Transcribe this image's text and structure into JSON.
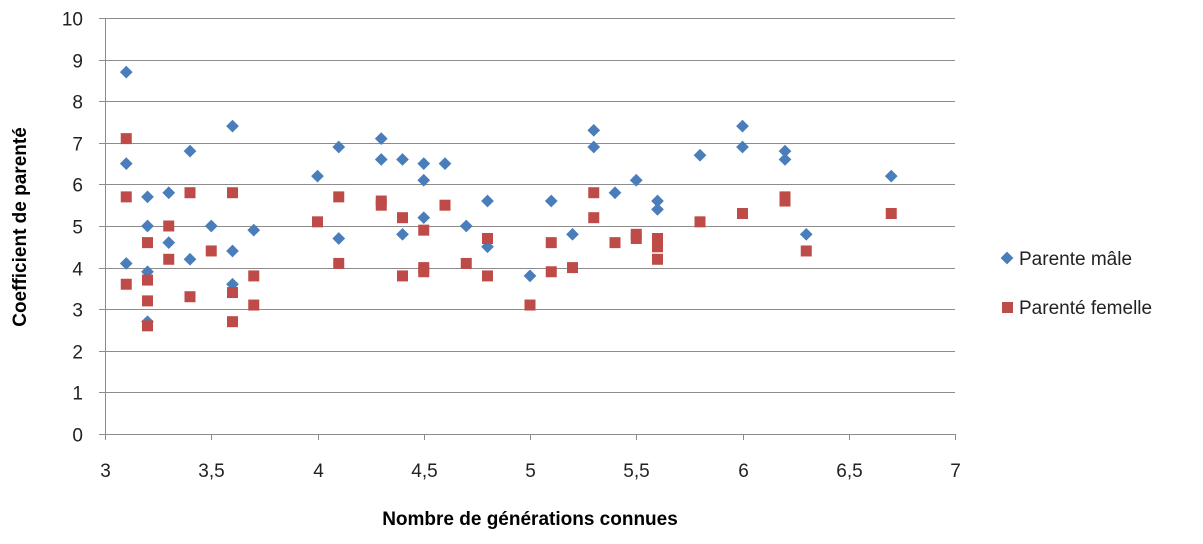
{
  "chart_data": {
    "type": "scatter",
    "title": "",
    "xlabel": "Nombre de générations connues",
    "ylabel": "Coefficient de parenté",
    "xlim": [
      3,
      7
    ],
    "ylim": [
      0,
      10
    ],
    "x_ticks": [
      "3",
      "3,5",
      "4",
      "4,5",
      "5",
      "5,5",
      "6",
      "6,5",
      "7"
    ],
    "y_ticks": [
      "0",
      "1",
      "2",
      "3",
      "4",
      "5",
      "6",
      "7",
      "8",
      "9",
      "10"
    ],
    "grid": "horizontal",
    "legend_position": "right",
    "series": [
      {
        "name": "Parente mâle",
        "marker": "diamond",
        "color": "#4a7ebb",
        "points": [
          [
            3.1,
            8.7
          ],
          [
            3.1,
            6.5
          ],
          [
            3.1,
            4.1
          ],
          [
            3.2,
            5.7
          ],
          [
            3.2,
            5.0
          ],
          [
            3.2,
            3.9
          ],
          [
            3.2,
            2.7
          ],
          [
            3.3,
            5.8
          ],
          [
            3.3,
            4.6
          ],
          [
            3.4,
            6.8
          ],
          [
            3.4,
            4.2
          ],
          [
            3.5,
            5.0
          ],
          [
            3.6,
            7.4
          ],
          [
            3.6,
            4.4
          ],
          [
            3.6,
            3.6
          ],
          [
            3.7,
            4.9
          ],
          [
            4.0,
            6.2
          ],
          [
            4.1,
            6.9
          ],
          [
            4.1,
            4.7
          ],
          [
            4.3,
            7.1
          ],
          [
            4.3,
            6.6
          ],
          [
            4.4,
            6.6
          ],
          [
            4.4,
            4.8
          ],
          [
            4.5,
            6.5
          ],
          [
            4.5,
            6.1
          ],
          [
            4.5,
            5.2
          ],
          [
            4.6,
            6.5
          ],
          [
            4.7,
            5.0
          ],
          [
            4.8,
            5.6
          ],
          [
            4.8,
            4.5
          ],
          [
            5.0,
            3.8
          ],
          [
            5.1,
            5.6
          ],
          [
            5.2,
            4.8
          ],
          [
            5.3,
            7.3
          ],
          [
            5.3,
            6.9
          ],
          [
            5.4,
            5.8
          ],
          [
            5.5,
            6.1
          ],
          [
            5.6,
            5.6
          ],
          [
            5.6,
            5.4
          ],
          [
            5.8,
            6.7
          ],
          [
            6.0,
            7.4
          ],
          [
            6.0,
            6.9
          ],
          [
            6.2,
            6.8
          ],
          [
            6.2,
            6.6
          ],
          [
            6.3,
            4.8
          ],
          [
            6.7,
            6.2
          ]
        ]
      },
      {
        "name": "Parenté femelle",
        "marker": "square",
        "color": "#be4b48",
        "points": [
          [
            3.1,
            7.1
          ],
          [
            3.1,
            5.7
          ],
          [
            3.1,
            3.6
          ],
          [
            3.2,
            4.6
          ],
          [
            3.2,
            3.7
          ],
          [
            3.2,
            3.2
          ],
          [
            3.2,
            2.6
          ],
          [
            3.3,
            5.0
          ],
          [
            3.3,
            4.2
          ],
          [
            3.4,
            5.8
          ],
          [
            3.4,
            3.3
          ],
          [
            3.5,
            4.4
          ],
          [
            3.6,
            5.8
          ],
          [
            3.6,
            3.4
          ],
          [
            3.6,
            2.7
          ],
          [
            3.7,
            3.8
          ],
          [
            3.7,
            3.1
          ],
          [
            4.0,
            5.1
          ],
          [
            4.1,
            5.7
          ],
          [
            4.1,
            4.1
          ],
          [
            4.3,
            5.6
          ],
          [
            4.3,
            5.5
          ],
          [
            4.4,
            5.2
          ],
          [
            4.4,
            3.8
          ],
          [
            4.5,
            4.9
          ],
          [
            4.5,
            4.0
          ],
          [
            4.5,
            3.9
          ],
          [
            4.6,
            5.5
          ],
          [
            4.7,
            4.1
          ],
          [
            4.8,
            4.7
          ],
          [
            4.8,
            3.8
          ],
          [
            5.0,
            3.1
          ],
          [
            5.1,
            4.6
          ],
          [
            5.1,
            3.9
          ],
          [
            5.2,
            4.0
          ],
          [
            5.3,
            5.8
          ],
          [
            5.3,
            5.2
          ],
          [
            5.4,
            4.6
          ],
          [
            5.5,
            4.8
          ],
          [
            5.5,
            4.7
          ],
          [
            5.6,
            4.7
          ],
          [
            5.6,
            4.5
          ],
          [
            5.6,
            4.2
          ],
          [
            5.8,
            5.1
          ],
          [
            6.0,
            5.3
          ],
          [
            6.2,
            5.7
          ],
          [
            6.2,
            5.6
          ],
          [
            6.3,
            4.4
          ],
          [
            6.7,
            5.3
          ]
        ]
      }
    ]
  }
}
